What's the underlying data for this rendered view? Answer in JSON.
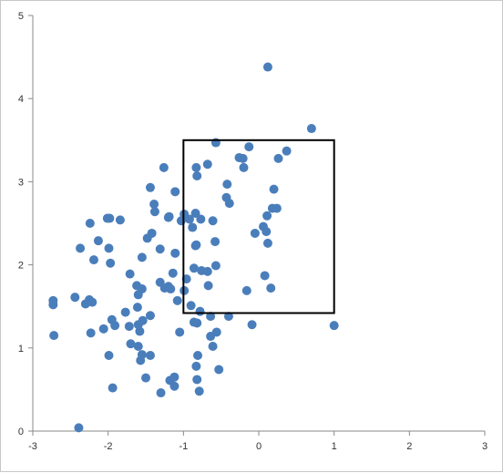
{
  "chart_data": {
    "type": "scatter",
    "title": "",
    "xlabel": "",
    "ylabel": "",
    "xlim": [
      -3,
      3
    ],
    "ylim": [
      0,
      5
    ],
    "x_ticks": [
      "-3",
      "-2",
      "-1",
      "0",
      "1",
      "2",
      "3"
    ],
    "y_ticks": [
      "0",
      "1",
      "2",
      "3",
      "4",
      "5"
    ],
    "grid": false,
    "legend": "none",
    "colors": {
      "point": "#4a7ebb",
      "axis": "#888888",
      "box": "#000000"
    },
    "rectangle": {
      "x": [
        -1,
        1
      ],
      "y": [
        1.42,
        3.5
      ]
    },
    "series": [
      {
        "points": [
          [
            0.12,
            4.38
          ],
          [
            0.7,
            3.64
          ],
          [
            -0.57,
            3.47
          ],
          [
            -0.13,
            3.42
          ],
          [
            0.37,
            3.37
          ],
          [
            -0.26,
            3.29
          ],
          [
            -0.21,
            3.28
          ],
          [
            0.26,
            3.28
          ],
          [
            -0.68,
            3.21
          ],
          [
            -0.2,
            3.17
          ],
          [
            -1.26,
            3.17
          ],
          [
            -0.83,
            3.17
          ],
          [
            -0.82,
            3.07
          ],
          [
            -0.42,
            2.97
          ],
          [
            -1.44,
            2.93
          ],
          [
            0.2,
            2.91
          ],
          [
            -1.11,
            2.88
          ],
          [
            -0.43,
            2.81
          ],
          [
            -0.39,
            2.74
          ],
          [
            -1.39,
            2.73
          ],
          [
            0.24,
            2.68
          ],
          [
            0.18,
            2.68
          ],
          [
            -1.38,
            2.64
          ],
          [
            -0.84,
            2.62
          ],
          [
            -0.99,
            2.61
          ],
          [
            0.11,
            2.59
          ],
          [
            -1.19,
            2.58
          ],
          [
            -1.2,
            2.57
          ],
          [
            -1.98,
            2.56
          ],
          [
            -2.01,
            2.56
          ],
          [
            -0.77,
            2.55
          ],
          [
            -0.92,
            2.55
          ],
          [
            -1.84,
            2.54
          ],
          [
            -0.61,
            2.53
          ],
          [
            -1.03,
            2.53
          ],
          [
            -2.24,
            2.5
          ],
          [
            0.06,
            2.46
          ],
          [
            -0.88,
            2.45
          ],
          [
            0.1,
            2.4
          ],
          [
            -1.42,
            2.38
          ],
          [
            -0.05,
            2.38
          ],
          [
            -1.48,
            2.32
          ],
          [
            -2.13,
            2.29
          ],
          [
            -0.58,
            2.28
          ],
          [
            0.12,
            2.26
          ],
          [
            -0.83,
            2.24
          ],
          [
            -0.84,
            2.23
          ],
          [
            -2.37,
            2.2
          ],
          [
            -1.99,
            2.2
          ],
          [
            -1.31,
            2.19
          ],
          [
            -1.11,
            2.14
          ],
          [
            -1.55,
            2.09
          ],
          [
            -2.19,
            2.06
          ],
          [
            -1.97,
            2.02
          ],
          [
            -0.57,
            1.99
          ],
          [
            -0.86,
            1.96
          ],
          [
            -0.76,
            1.93
          ],
          [
            -0.68,
            1.92
          ],
          [
            -1.14,
            1.9
          ],
          [
            -1.71,
            1.89
          ],
          [
            0.08,
            1.87
          ],
          [
            -0.96,
            1.83
          ],
          [
            -1.31,
            1.79
          ],
          [
            -1.62,
            1.75
          ],
          [
            -0.67,
            1.75
          ],
          [
            -1.2,
            1.74
          ],
          [
            -1.25,
            1.72
          ],
          [
            0.16,
            1.72
          ],
          [
            -1.17,
            1.71
          ],
          [
            -1.55,
            1.71
          ],
          [
            -0.99,
            1.69
          ],
          [
            -0.16,
            1.69
          ],
          [
            -1.6,
            1.64
          ],
          [
            -2.44,
            1.61
          ],
          [
            -2.73,
            1.57
          ],
          [
            -2.25,
            1.58
          ],
          [
            -1.08,
            1.57
          ],
          [
            -2.21,
            1.55
          ],
          [
            -2.3,
            1.53
          ],
          [
            -0.9,
            1.51
          ],
          [
            -2.73,
            1.52
          ],
          [
            -1.61,
            1.49
          ],
          [
            -0.78,
            1.44
          ],
          [
            -1.77,
            1.43
          ],
          [
            -1.44,
            1.39
          ],
          [
            -0.4,
            1.38
          ],
          [
            -0.64,
            1.38
          ],
          [
            -1.95,
            1.34
          ],
          [
            -1.54,
            1.33
          ],
          [
            -0.86,
            1.31
          ],
          [
            -0.09,
            1.28
          ],
          [
            1.0,
            1.27
          ],
          [
            -1.91,
            1.27
          ],
          [
            -1.6,
            1.28
          ],
          [
            -0.82,
            1.3
          ],
          [
            -1.72,
            1.26
          ],
          [
            -2.06,
            1.23
          ],
          [
            -1.58,
            1.2
          ],
          [
            -0.56,
            1.19
          ],
          [
            -1.05,
            1.19
          ],
          [
            -2.23,
            1.18
          ],
          [
            -2.72,
            1.15
          ],
          [
            -0.64,
            1.14
          ],
          [
            -1.7,
            1.05
          ],
          [
            -1.6,
            1.02
          ],
          [
            -0.61,
            1.02
          ],
          [
            -1.55,
            0.92
          ],
          [
            -1.44,
            0.91
          ],
          [
            -1.99,
            0.91
          ],
          [
            -0.81,
            0.91
          ],
          [
            -1.57,
            0.85
          ],
          [
            -0.83,
            0.78
          ],
          [
            -0.53,
            0.74
          ],
          [
            -1.12,
            0.65
          ],
          [
            -1.5,
            0.64
          ],
          [
            -0.82,
            0.62
          ],
          [
            -1.18,
            0.61
          ],
          [
            -1.12,
            0.54
          ],
          [
            -1.94,
            0.52
          ],
          [
            -0.79,
            0.48
          ],
          [
            -1.3,
            0.46
          ],
          [
            -2.39,
            0.04
          ]
        ]
      }
    ]
  }
}
